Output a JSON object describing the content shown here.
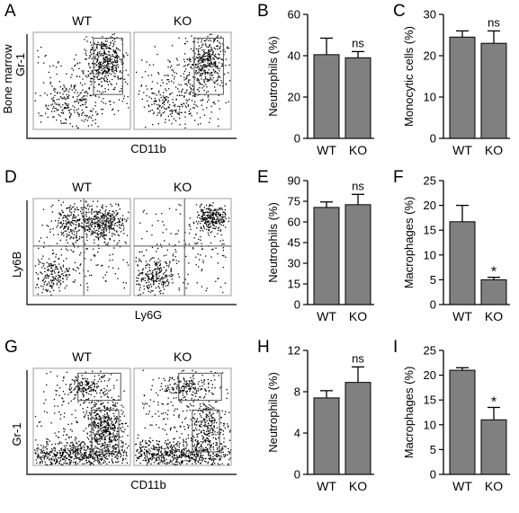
{
  "panel_letters": [
    "A",
    "B",
    "C",
    "D",
    "E",
    "F",
    "G",
    "H",
    "I"
  ],
  "flow_panels": [
    {
      "letter": "A",
      "row": 0,
      "group_left": "WT",
      "group_right": "KO",
      "y_label_top": "Bone marrow",
      "y_label": "Gr-1",
      "x_label": "CD11b",
      "gate": "box"
    },
    {
      "letter": "D",
      "row": 1,
      "group_left": "WT",
      "group_right": "KO",
      "y_label": "Ly6B",
      "x_label": "Ly6G",
      "gate": "quadrant"
    },
    {
      "letter": "G",
      "row": 2,
      "group_left": "WT",
      "group_right": "KO",
      "y_label": "Gr-1",
      "x_label": "CD11b",
      "gate": "two-box"
    }
  ],
  "chart_data": [
    {
      "panel": "B",
      "type": "bar",
      "categories": [
        "WT",
        "KO"
      ],
      "values": [
        40.5,
        39
      ],
      "errors": [
        8,
        3
      ],
      "ylabel": "Neutrophils (%)",
      "ylim": [
        0,
        60
      ],
      "yticks": [
        0,
        20,
        40,
        60
      ],
      "significance": [
        "",
        "ns"
      ]
    },
    {
      "panel": "C",
      "type": "bar",
      "categories": [
        "WT",
        "KO"
      ],
      "values": [
        24.5,
        23
      ],
      "errors": [
        1.5,
        3
      ],
      "ylabel": "Monocytic cells (%)",
      "ylim": [
        0,
        30
      ],
      "yticks": [
        0,
        10,
        20,
        30
      ],
      "significance": [
        "",
        "ns"
      ]
    },
    {
      "panel": "E",
      "type": "bar",
      "categories": [
        "WT",
        "KO"
      ],
      "values": [
        70.5,
        72.5
      ],
      "errors": [
        4,
        7.5
      ],
      "ylabel": "Neutrophils (%)",
      "ylim": [
        0,
        90
      ],
      "yticks": [
        0,
        15,
        30,
        45,
        60,
        75,
        90
      ],
      "significance": [
        "",
        "ns"
      ]
    },
    {
      "panel": "F",
      "type": "bar",
      "categories": [
        "WT",
        "KO"
      ],
      "values": [
        16.7,
        5
      ],
      "errors": [
        3.3,
        0.5
      ],
      "ylabel": "Macrophages (%)",
      "ylim": [
        0,
        25
      ],
      "yticks": [
        0,
        5,
        10,
        15,
        20,
        25
      ],
      "significance": [
        "",
        "*"
      ]
    },
    {
      "panel": "H",
      "type": "bar",
      "categories": [
        "WT",
        "KO"
      ],
      "values": [
        7.4,
        8.9
      ],
      "errors": [
        0.7,
        1.5
      ],
      "ylabel": "Neutrophils (%)",
      "ylim": [
        0,
        12
      ],
      "yticks": [
        0,
        4,
        8,
        12
      ],
      "significance": [
        "",
        "ns"
      ]
    },
    {
      "panel": "I",
      "type": "bar",
      "categories": [
        "WT",
        "KO"
      ],
      "values": [
        21,
        11
      ],
      "errors": [
        0.5,
        2.5
      ],
      "ylabel": "Macrophages (%)",
      "ylim": [
        0,
        25
      ],
      "yticks": [
        0,
        5,
        10,
        15,
        20,
        25
      ],
      "significance": [
        "",
        "*"
      ]
    }
  ],
  "colors": {
    "bar_fill": "#808080",
    "axis": "#000000",
    "dots": "#000000",
    "gate": "#555555"
  }
}
